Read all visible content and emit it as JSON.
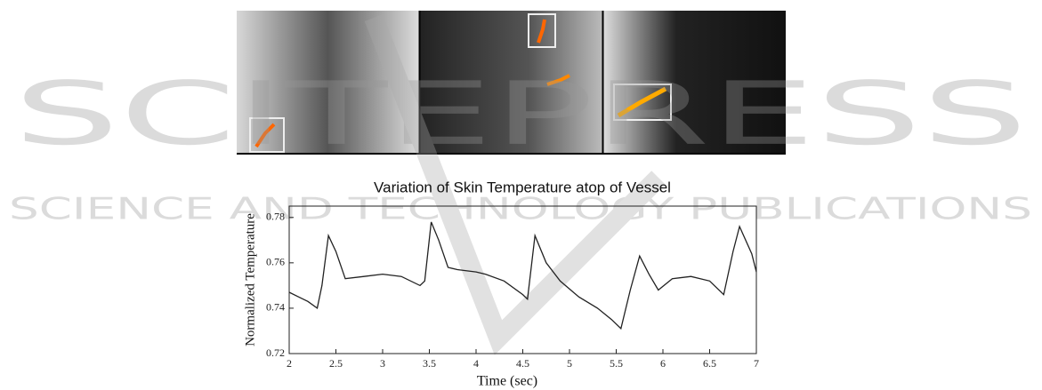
{
  "chart_data": {
    "type": "line",
    "title": "Variation of Skin Temperature atop of Vessel",
    "xlabel": "Time (sec)",
    "ylabel": "Normalized Temperature",
    "x": [
      2.0,
      2.1,
      2.2,
      2.3,
      2.35,
      2.42,
      2.5,
      2.6,
      2.8,
      3.0,
      3.2,
      3.4,
      3.45,
      3.52,
      3.6,
      3.7,
      3.8,
      4.0,
      4.1,
      4.3,
      4.5,
      4.55,
      4.63,
      4.75,
      4.9,
      5.1,
      5.3,
      5.45,
      5.55,
      5.65,
      5.75,
      5.85,
      5.95,
      6.1,
      6.3,
      6.5,
      6.65,
      6.75,
      6.82,
      6.95,
      7.0
    ],
    "values": [
      0.747,
      0.745,
      0.743,
      0.74,
      0.75,
      0.772,
      0.765,
      0.753,
      0.754,
      0.755,
      0.754,
      0.75,
      0.752,
      0.778,
      0.77,
      0.758,
      0.757,
      0.756,
      0.755,
      0.752,
      0.746,
      0.744,
      0.772,
      0.76,
      0.752,
      0.745,
      0.74,
      0.735,
      0.731,
      0.748,
      0.763,
      0.755,
      0.748,
      0.753,
      0.754,
      0.752,
      0.746,
      0.765,
      0.776,
      0.764,
      0.756
    ],
    "color": "#222222",
    "xlim": [
      2,
      7
    ],
    "xticks": [
      2,
      2.5,
      3,
      3.5,
      4,
      4.5,
      5,
      5.5,
      6,
      6.5,
      7
    ],
    "ylim": [
      0.72,
      0.785
    ],
    "yticks": [
      0.72,
      0.74,
      0.76,
      0.78
    ]
  },
  "watermark": {
    "brand": "SCITEPRESS",
    "tagline": "SCIENCE AND TECHNOLOGY PUBLICATIONS"
  }
}
